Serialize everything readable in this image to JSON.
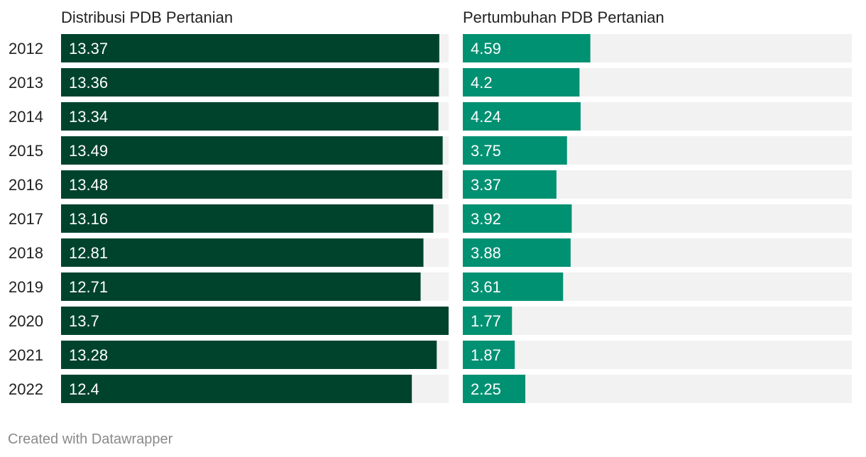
{
  "colors": {
    "distribusi_bar": "#00432d",
    "pertumbuhan_bar": "#009172",
    "track": "#f2f2f2",
    "text": "#222222",
    "value_text": "#ffffff",
    "credit_text": "#8a8a8a"
  },
  "credit": "Created with Datawrapper",
  "chart_data": {
    "type": "bar",
    "orientation": "horizontal",
    "categories": [
      "2012",
      "2013",
      "2014",
      "2015",
      "2016",
      "2017",
      "2018",
      "2019",
      "2020",
      "2021",
      "2022"
    ],
    "series": [
      {
        "name": "Distribusi PDB Pertanian",
        "values": [
          13.37,
          13.36,
          13.34,
          13.49,
          13.48,
          13.16,
          12.81,
          12.71,
          13.7,
          13.28,
          12.4
        ],
        "labels": [
          "13.37",
          "13.36",
          "13.34",
          "13.49",
          "13.48",
          "13.16",
          "12.81",
          "12.71",
          "13.7",
          "13.28",
          "12.4"
        ],
        "xlim": [
          0,
          13.7
        ]
      },
      {
        "name": "Pertumbuhan PDB Pertanian",
        "values": [
          4.59,
          4.2,
          4.24,
          3.75,
          3.37,
          3.92,
          3.88,
          3.61,
          1.77,
          1.87,
          2.25
        ],
        "labels": [
          "4.59",
          "4.2",
          "4.24",
          "3.75",
          "3.37",
          "3.92",
          "3.88",
          "3.61",
          "1.77",
          "1.87",
          "2.25"
        ],
        "xlim": [
          0,
          14
        ]
      }
    ],
    "grid": false,
    "legend": "none"
  }
}
